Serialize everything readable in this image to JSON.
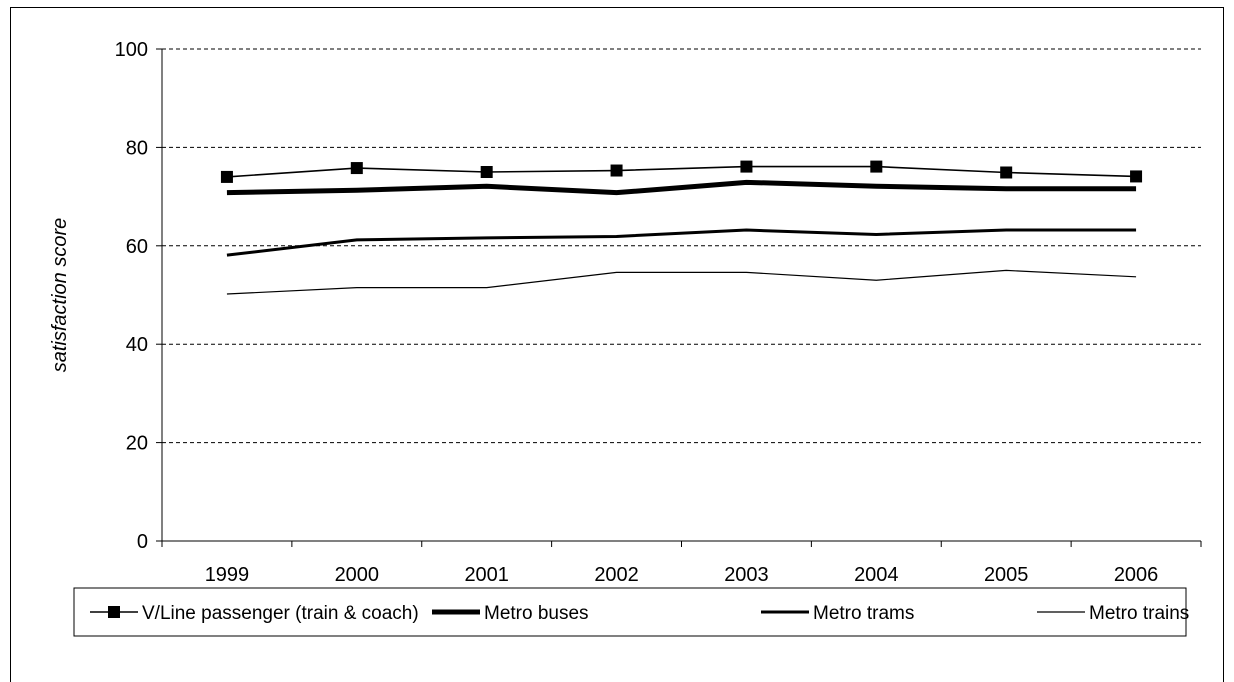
{
  "chart_data": {
    "type": "line",
    "title": "",
    "xlabel": "",
    "ylabel": "satisfaction score",
    "categories": [
      "1999",
      "2000",
      "2001",
      "2002",
      "2003",
      "2004",
      "2005",
      "2006"
    ],
    "ylim": [
      0,
      100
    ],
    "yticks": [
      0,
      20,
      40,
      60,
      80,
      100
    ],
    "grid": "dashed horizontal",
    "legend_position": "bottom",
    "series": [
      {
        "name": "V/Line passenger (train & coach)",
        "values": [
          74,
          75.8,
          75,
          75.3,
          76.1,
          76.1,
          74.9,
          74.1
        ],
        "color": "#000000",
        "marker": "square",
        "line_width": "thin"
      },
      {
        "name": "Metro buses",
        "values": [
          70.8,
          71.3,
          72.1,
          70.8,
          72.9,
          72.1,
          71.6,
          71.6
        ],
        "color": "#000000",
        "marker": "none",
        "line_width": "thick"
      },
      {
        "name": "Metro trams",
        "values": [
          58.1,
          61.2,
          61.6,
          61.9,
          63.2,
          62.3,
          63.2,
          63.2
        ],
        "color": "#000000",
        "marker": "none",
        "line_width": "medium"
      },
      {
        "name": "Metro trains",
        "values": [
          50.2,
          51.5,
          51.5,
          54.6,
          54.6,
          53,
          55,
          53.7
        ],
        "color": "#000000",
        "marker": "none",
        "line_width": "hairline"
      }
    ]
  }
}
